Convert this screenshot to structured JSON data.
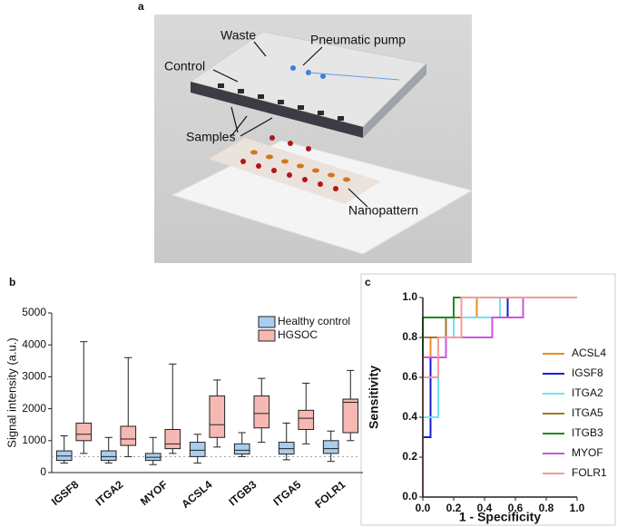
{
  "diagram": {
    "panel_label": "a",
    "labels": [
      "Waste",
      "Pneumatic pump",
      "Control",
      "Samples",
      "Nanopattern"
    ]
  },
  "chart_data": [
    {
      "type": "box",
      "panel_label": "b",
      "y_label": "Signal intensity (a.u.)",
      "categories": [
        "IGSF8",
        "ITGA2",
        "MYOF",
        "ACSL4",
        "ITGB3",
        "ITGA5",
        "FOLR1"
      ],
      "ylim": [
        0,
        5000
      ],
      "yticks": [
        0,
        1000,
        2000,
        3000,
        4000,
        5000
      ],
      "reference_line": 500,
      "series": [
        {
          "name": "Healthy control",
          "color": "#a8cdee",
          "values": [
            {
              "min": 300,
              "q1": 380,
              "median": 520,
              "q3": 680,
              "max": 1150
            },
            {
              "min": 300,
              "q1": 380,
              "median": 500,
              "q3": 680,
              "max": 1100
            },
            {
              "min": 250,
              "q1": 380,
              "median": 480,
              "q3": 600,
              "max": 1100
            },
            {
              "min": 300,
              "q1": 500,
              "median": 700,
              "q3": 950,
              "max": 1200
            },
            {
              "min": 500,
              "q1": 580,
              "median": 700,
              "q3": 900,
              "max": 1250
            },
            {
              "min": 400,
              "q1": 580,
              "median": 750,
              "q3": 950,
              "max": 1550
            },
            {
              "min": 350,
              "q1": 600,
              "median": 750,
              "q3": 1000,
              "max": 1300
            }
          ]
        },
        {
          "name": "HGSOC",
          "color": "#f6b8b2",
          "values": [
            {
              "min": 600,
              "q1": 1000,
              "median": 1200,
              "q3": 1550,
              "max": 4100
            },
            {
              "min": 500,
              "q1": 850,
              "median": 1050,
              "q3": 1450,
              "max": 3600
            },
            {
              "min": 600,
              "q1": 750,
              "median": 900,
              "q3": 1350,
              "max": 3400
            },
            {
              "min": 800,
              "q1": 1100,
              "median": 1500,
              "q3": 2400,
              "max": 2900
            },
            {
              "min": 950,
              "q1": 1400,
              "median": 1850,
              "q3": 2400,
              "max": 2950
            },
            {
              "min": 900,
              "q1": 1350,
              "median": 1700,
              "q3": 1950,
              "max": 2800
            },
            {
              "min": 1000,
              "q1": 1250,
              "median": 2200,
              "q3": 2300,
              "max": 3200
            }
          ]
        }
      ]
    },
    {
      "type": "line",
      "panel_label": "c",
      "x_label": "1 - Specificity",
      "y_label": "Sensitivity",
      "xlim": [
        0,
        1
      ],
      "ylim": [
        0,
        1
      ],
      "xticks": [
        {
          "value": 0,
          "label": "0.0"
        },
        {
          "value": 0.2,
          "label": "0.2"
        },
        {
          "value": 0.4,
          "label": "0.4"
        },
        {
          "value": 0.6,
          "label": "0.6"
        },
        {
          "value": 0.8,
          "label": "0.8"
        },
        {
          "value": 1,
          "label": "1.0"
        }
      ],
      "yticks": [
        {
          "value": 0,
          "label": "0.0"
        },
        {
          "value": 0.2,
          "label": "0.2"
        },
        {
          "value": 0.4,
          "label": "0.4"
        },
        {
          "value": 0.6,
          "label": "0.6"
        },
        {
          "value": 0.8,
          "label": "0.8"
        },
        {
          "value": 1,
          "label": "1.0"
        }
      ],
      "series": [
        {
          "name": "ACSL4",
          "color": "#f08a24",
          "x": [
            0,
            0,
            0.05,
            0.05,
            0.15,
            0.15,
            0.35,
            0.35,
            1
          ],
          "values": [
            0,
            0.6,
            0.6,
            0.8,
            0.8,
            0.9,
            0.9,
            1,
            1
          ]
        },
        {
          "name": "IGSF8",
          "color": "#1c1cd8",
          "x": [
            0,
            0,
            0.05,
            0.05,
            0.1,
            0.1,
            0.15,
            0.15,
            0.55,
            0.55,
            1
          ],
          "values": [
            0,
            0.3,
            0.3,
            0.7,
            0.7,
            0.8,
            0.8,
            0.9,
            0.9,
            1,
            1
          ]
        },
        {
          "name": "ITGA2",
          "color": "#6ee3f7",
          "x": [
            0,
            0,
            0.1,
            0.1,
            0.15,
            0.15,
            0.2,
            0.2,
            0.5,
            0.5,
            1
          ],
          "values": [
            0,
            0.4,
            0.4,
            0.7,
            0.7,
            0.8,
            0.8,
            0.9,
            0.9,
            1,
            1
          ]
        },
        {
          "name": "ITGA5",
          "color": "#a0782a",
          "x": [
            0,
            0,
            0.15,
            0.15,
            0.25,
            0.25,
            1
          ],
          "values": [
            0,
            0.8,
            0.8,
            0.9,
            0.9,
            1,
            1
          ]
        },
        {
          "name": "ITGB3",
          "color": "#1a8c1a",
          "x": [
            0,
            0,
            0.2,
            0.2,
            1
          ],
          "values": [
            0,
            0.9,
            0.9,
            1,
            1
          ]
        },
        {
          "name": "MYOF",
          "color": "#cc55dd",
          "x": [
            0,
            0,
            0.15,
            0.15,
            0.45,
            0.45,
            0.65,
            0.65,
            1
          ],
          "values": [
            0,
            0.7,
            0.7,
            0.8,
            0.8,
            0.9,
            0.9,
            1,
            1
          ]
        },
        {
          "name": "FOLR1",
          "color": "#f59a9a",
          "x": [
            0,
            0,
            0.1,
            0.1,
            0.25,
            0.25,
            1
          ],
          "values": [
            0,
            0.6,
            0.6,
            0.8,
            0.8,
            1,
            1
          ]
        }
      ]
    }
  ]
}
